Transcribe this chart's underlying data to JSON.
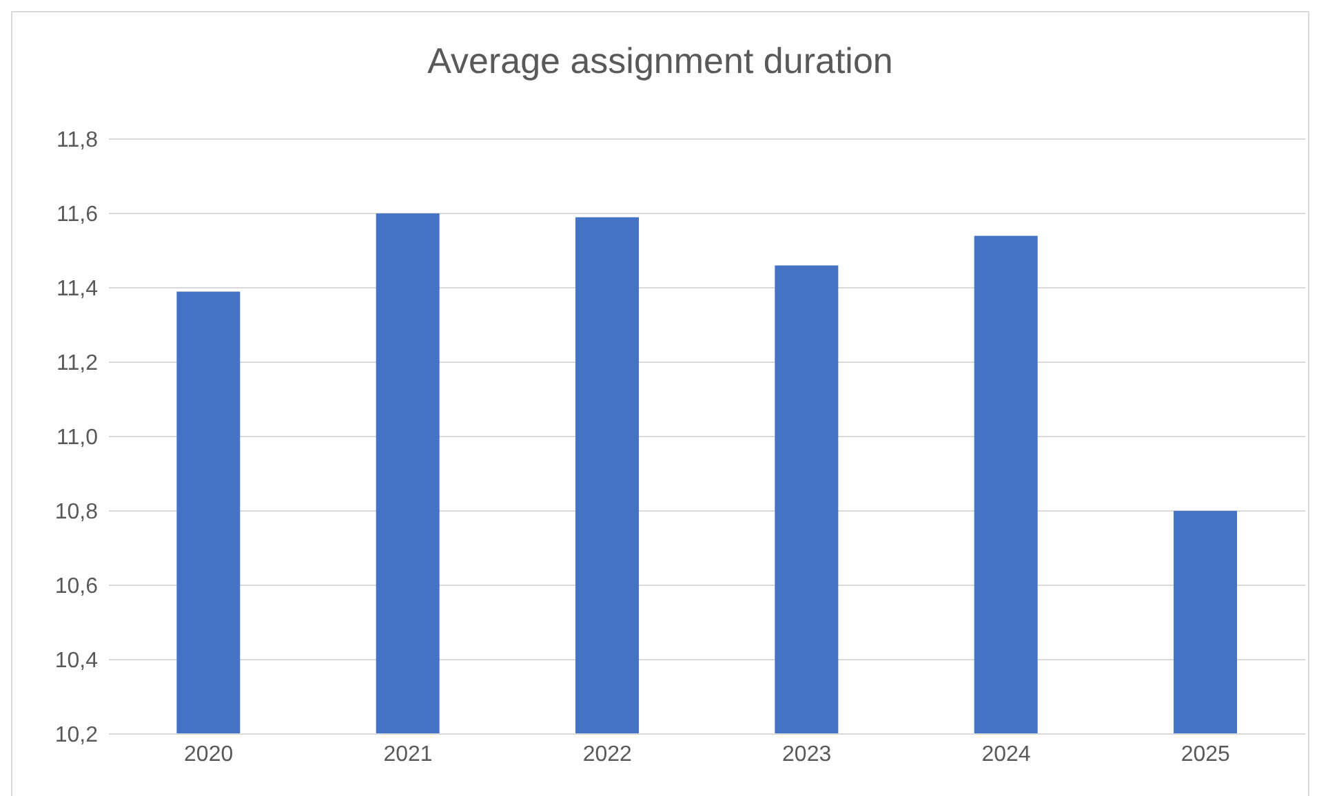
{
  "chart_data": {
    "type": "bar",
    "title": "Average assignment duration",
    "categories": [
      "2020",
      "2021",
      "2022",
      "2023",
      "2024",
      "2025"
    ],
    "values": [
      11.39,
      11.6,
      11.59,
      11.46,
      11.54,
      10.8
    ],
    "color": "#4472c4",
    "ylim": [
      10.2,
      11.8
    ],
    "yticks": [
      {
        "value": 10.2,
        "label": "10,2"
      },
      {
        "value": 10.4,
        "label": "10,4"
      },
      {
        "value": 10.6,
        "label": "10,6"
      },
      {
        "value": 10.8,
        "label": "10,8"
      },
      {
        "value": 11.0,
        "label": "11,0"
      },
      {
        "value": 11.2,
        "label": "11,2"
      },
      {
        "value": 11.4,
        "label": "11,4"
      },
      {
        "value": 11.6,
        "label": "11,6"
      },
      {
        "value": 11.8,
        "label": "11,8"
      }
    ],
    "grid": "y"
  }
}
